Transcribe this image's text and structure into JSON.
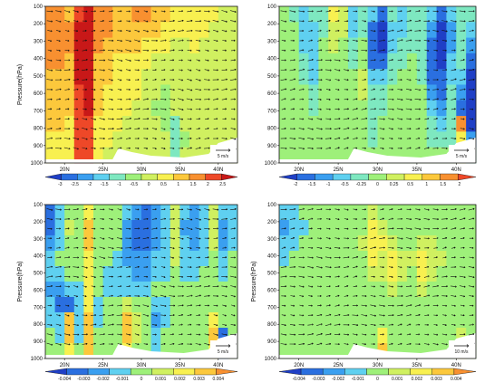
{
  "chart_data": [
    {
      "type": "heatmap",
      "panel": "top-left",
      "title": "",
      "xlabel": "",
      "ylabel": "Pressure(hPa)",
      "x_ticks": [
        "20N",
        "25N",
        "30N",
        "35N",
        "40N"
      ],
      "y_ticks": [
        "100",
        "200",
        "300",
        "400",
        "500",
        "600",
        "700",
        "800",
        "900",
        "1000"
      ],
      "xlim": [
        20,
        40
      ],
      "ylim": [
        1000,
        100
      ],
      "ref_vector": "5 m/s",
      "colorbar_labels": [
        "-3",
        "-2.5",
        "-2",
        "-1.5",
        "-1",
        "-0.5",
        "0",
        "0.5",
        "1",
        "1.5",
        "2",
        "2.5"
      ],
      "colorbar_colors": [
        "#1f3fc6",
        "#2a6fe0",
        "#3a9ff0",
        "#5fd0f0",
        "#7ee8c0",
        "#9ef07a",
        "#d0f060",
        "#f8f050",
        "#fcc83c",
        "#f89030",
        "#ee4828",
        "#c81818"
      ],
      "grid": [
        [
          0.6,
          0.6,
          0.55,
          0.9,
          1.0,
          0.7,
          0.6,
          0.55,
          0.5,
          0.6,
          0.7,
          0.55,
          0.4,
          0.35,
          0.3,
          0.35,
          0.3,
          0.2,
          0.15,
          0.1
        ],
        [
          0.65,
          0.6,
          0.6,
          1.0,
          1.1,
          0.65,
          0.6,
          0.55,
          0.5,
          0.55,
          0.55,
          0.45,
          0.3,
          0.25,
          0.25,
          0.3,
          0.2,
          0.15,
          0.1,
          0.1
        ],
        [
          0.65,
          0.6,
          0.6,
          1.05,
          1.15,
          0.6,
          0.55,
          0.5,
          0.4,
          0.4,
          0.35,
          0.25,
          0.2,
          0.15,
          0.15,
          0.2,
          0.15,
          0.1,
          0.05,
          0.05
        ],
        [
          0.6,
          0.6,
          0.55,
          1.05,
          1.15,
          0.55,
          0.45,
          0.35,
          0.3,
          0.25,
          0.2,
          0.15,
          0.1,
          0.1,
          0.1,
          0.1,
          0.05,
          0.05,
          0.0,
          0.0
        ],
        [
          0.55,
          0.55,
          0.5,
          1.0,
          1.1,
          0.5,
          0.4,
          0.3,
          0.25,
          0.2,
          0.15,
          0.1,
          0.05,
          0.05,
          0.0,
          0.0,
          0.0,
          0.0,
          0.0,
          0.0
        ],
        [
          0.5,
          0.5,
          0.45,
          0.95,
          1.05,
          0.45,
          0.35,
          0.3,
          0.25,
          0.2,
          0.1,
          0.0,
          -0.1,
          0.0,
          0.0,
          0.0,
          0.0,
          0.0,
          0.0,
          0.0
        ],
        [
          0.45,
          0.45,
          0.4,
          0.9,
          1.0,
          0.4,
          0.3,
          0.25,
          0.2,
          0.15,
          0.05,
          -0.15,
          -0.1,
          0.0,
          0.0,
          0.0,
          0.0,
          0.0,
          0.0,
          0.0
        ],
        [
          0.4,
          0.4,
          0.35,
          0.9,
          0.95,
          0.35,
          0.25,
          0.2,
          0.15,
          0.1,
          0.0,
          0.0,
          -0.2,
          -0.3,
          0.0,
          0.0,
          0.0,
          0.0,
          0.0,
          0.0
        ],
        [
          0.35,
          0.35,
          0.3,
          0.85,
          0.9,
          0.3,
          0.2,
          0.15,
          0.1,
          0.05,
          0.0,
          0.0,
          0.0,
          -0.4,
          -0.1,
          0.0,
          0.0,
          0.0,
          0.0,
          0.0
        ],
        [
          0.3,
          0.3,
          0.3,
          0.8,
          0.85,
          0.25,
          0.15,
          0.1,
          0.05,
          0.0,
          0.0,
          0.0,
          0.0,
          -0.3,
          0.0,
          0.0,
          0.0,
          0.0,
          0.0,
          0.0
        ]
      ]
    },
    {
      "type": "heatmap",
      "panel": "top-right",
      "title": "",
      "xlabel": "",
      "ylabel": "",
      "x_ticks": [
        "20N",
        "25N",
        "30N",
        "35N",
        "40N"
      ],
      "y_ticks": [
        "100",
        "200",
        "300",
        "400",
        "500",
        "600",
        "700",
        "800",
        "900",
        "1000"
      ],
      "xlim": [
        20,
        40
      ],
      "ylim": [
        1000,
        100
      ],
      "ref_vector": "5 m/s",
      "colorbar_labels": [
        "-2",
        "-1.5",
        "-1",
        "-0.5",
        "-0.25",
        "0",
        "0.25",
        "0.5",
        "1",
        "1.5",
        "2"
      ],
      "colorbar_colors": [
        "#1f3fc6",
        "#2a6fe0",
        "#3a9ff0",
        "#5fd0f0",
        "#7ee8c0",
        "#9ef07a",
        "#d0f060",
        "#f8f050",
        "#fcc83c",
        "#f89030",
        "#ee4828"
      ],
      "grid": [
        [
          -0.1,
          -0.2,
          -0.5,
          -0.3,
          -0.2,
          0.5,
          0.2,
          -0.5,
          -0.2,
          -0.5,
          -0.9,
          -0.3,
          -0.4,
          -0.2,
          -0.3,
          -0.4,
          -0.9,
          -0.5,
          -0.2,
          -0.3
        ],
        [
          -0.1,
          -0.1,
          -0.5,
          -0.4,
          -0.2,
          0.3,
          0.2,
          -0.4,
          -0.3,
          -0.8,
          -1.0,
          -0.4,
          -0.4,
          -0.2,
          -0.3,
          -0.6,
          -1.0,
          -0.6,
          -0.3,
          -0.5
        ],
        [
          0.0,
          -0.1,
          -0.4,
          -0.5,
          -0.1,
          0.2,
          0.1,
          -0.3,
          -0.1,
          -0.9,
          -1.0,
          -0.4,
          -0.3,
          -0.2,
          -0.2,
          -0.8,
          -1.0,
          -0.6,
          -0.3,
          -0.7
        ],
        [
          0.0,
          0.0,
          -0.3,
          -0.5,
          0.0,
          0.1,
          0.0,
          -0.2,
          0.1,
          -0.8,
          -0.9,
          -0.3,
          -0.2,
          -0.1,
          -0.2,
          -0.9,
          -1.0,
          -0.5,
          -0.3,
          -0.8
        ],
        [
          0.0,
          0.0,
          -0.2,
          -0.4,
          0.0,
          0.1,
          0.0,
          -0.1,
          0.2,
          -0.4,
          -0.5,
          -0.2,
          -0.1,
          -0.1,
          -0.2,
          -0.8,
          -0.9,
          -0.4,
          -0.4,
          -1.0
        ],
        [
          0.0,
          0.0,
          -0.1,
          -0.3,
          0.0,
          0.0,
          0.0,
          0.0,
          0.2,
          -0.2,
          -0.3,
          -0.1,
          0.0,
          0.0,
          -0.1,
          -0.6,
          -0.8,
          -0.3,
          -0.6,
          -1.1
        ],
        [
          0.0,
          0.0,
          0.0,
          -0.2,
          0.1,
          0.0,
          0.0,
          0.0,
          0.1,
          -0.2,
          -0.2,
          0.0,
          0.0,
          0.0,
          0.0,
          -0.4,
          -0.6,
          -0.3,
          -0.8,
          -1.2
        ],
        [
          0.0,
          0.0,
          0.0,
          -0.1,
          0.1,
          0.0,
          0.0,
          0.0,
          0.0,
          -0.3,
          -0.1,
          0.0,
          0.0,
          0.0,
          0.0,
          -0.3,
          -0.4,
          -0.3,
          0.8,
          -1.0
        ],
        [
          0.0,
          0.0,
          0.0,
          0.0,
          0.0,
          0.0,
          0.0,
          0.0,
          0.0,
          -0.2,
          0.0,
          0.0,
          0.0,
          0.0,
          0.0,
          -0.2,
          -0.2,
          -0.2,
          0.5,
          -0.6
        ],
        [
          0.0,
          0.0,
          0.0,
          0.0,
          0.0,
          0.0,
          0.0,
          0.0,
          0.0,
          0.0,
          0.0,
          0.0,
          0.0,
          0.0,
          0.0,
          0.0,
          -0.1,
          -0.1,
          0.2,
          -0.3
        ]
      ]
    },
    {
      "type": "heatmap",
      "panel": "bottom-left",
      "title": "",
      "xlabel": "",
      "ylabel": "Pressure(hPa)",
      "x_ticks": [
        "20N",
        "25N",
        "30N",
        "35N",
        "40N"
      ],
      "y_ticks": [
        "100",
        "200",
        "300",
        "400",
        "500",
        "600",
        "700",
        "800",
        "900",
        "1000"
      ],
      "xlim": [
        20,
        40
      ],
      "ylim": [
        1000,
        100
      ],
      "ref_vector": "5 m/s",
      "colorbar_labels": [
        "-0.004",
        "-0.003",
        "-0.002",
        "-0.001",
        "0",
        "0.001",
        "0.002",
        "0.003",
        "0.004"
      ],
      "colorbar_colors": [
        "#1f3fc6",
        "#2a6fe0",
        "#3a9ff0",
        "#5fd0f0",
        "#9ef07a",
        "#d0f060",
        "#f8f050",
        "#fcc83c",
        "#f89030"
      ],
      "grid": [
        [
          -0.7,
          -0.3,
          0.1,
          0.0,
          0.6,
          0.1,
          0.0,
          0.0,
          -0.4,
          -0.6,
          -0.7,
          -0.5,
          -0.3,
          0.2,
          -0.4,
          -0.5,
          -0.3,
          0.2,
          -0.4,
          -0.2
        ],
        [
          -0.9,
          -0.4,
          0.2,
          0.0,
          0.7,
          0.0,
          0.0,
          0.0,
          -0.6,
          -0.9,
          -0.9,
          -0.6,
          -0.4,
          0.3,
          -0.5,
          -0.6,
          -0.4,
          0.3,
          -0.6,
          -0.3
        ],
        [
          -0.5,
          -0.2,
          0.1,
          0.0,
          0.7,
          0.0,
          -0.1,
          -0.1,
          -0.6,
          -0.8,
          -0.8,
          -0.5,
          -0.3,
          0.2,
          -0.4,
          -0.5,
          -0.2,
          0.2,
          -0.5,
          -0.2
        ],
        [
          -0.3,
          -0.1,
          0.1,
          0.0,
          0.6,
          0.0,
          -0.1,
          -0.2,
          -0.5,
          -0.6,
          -0.6,
          -0.4,
          -0.2,
          0.2,
          -0.3,
          -0.3,
          -0.2,
          0.1,
          -0.3,
          -0.1
        ],
        [
          -0.2,
          -0.2,
          0.1,
          0.0,
          0.6,
          0.0,
          -0.2,
          -0.3,
          -0.4,
          -0.5,
          -0.5,
          -0.3,
          -0.2,
          0.1,
          -0.2,
          -0.2,
          -0.1,
          0.1,
          -0.2,
          -0.1
        ],
        [
          -0.5,
          -0.6,
          -0.2,
          -0.3,
          0.5,
          -0.1,
          -0.3,
          -0.3,
          -0.2,
          -0.2,
          -0.2,
          -0.1,
          -0.1,
          0.0,
          -0.1,
          -0.1,
          0.0,
          0.0,
          -0.1,
          0.0
        ],
        [
          -0.3,
          -0.8,
          -0.7,
          -0.4,
          0.5,
          -0.2,
          -0.1,
          0.0,
          0.3,
          0.1,
          0.0,
          -0.3,
          -0.2,
          0.0,
          -0.1,
          0.0,
          0.0,
          0.1,
          0.0,
          0.0
        ],
        [
          -0.2,
          -0.4,
          0.7,
          -0.3,
          0.8,
          -0.2,
          0.0,
          0.0,
          0.7,
          0.2,
          0.0,
          -0.5,
          -0.2,
          0.0,
          0.0,
          0.0,
          0.0,
          0.5,
          0.0,
          0.0
        ],
        [
          -0.1,
          -0.2,
          0.8,
          -0.2,
          0.9,
          -0.1,
          0.0,
          0.0,
          0.8,
          0.2,
          0.0,
          -0.4,
          -0.1,
          0.0,
          0.0,
          0.0,
          0.0,
          0.7,
          -0.8,
          0.0
        ],
        [
          0.0,
          0.0,
          0.6,
          0.0,
          0.7,
          0.0,
          0.0,
          0.0,
          0.5,
          0.1,
          0.0,
          -0.2,
          0.0,
          0.0,
          0.0,
          0.0,
          0.0,
          0.5,
          -0.5,
          0.0
        ]
      ]
    },
    {
      "type": "heatmap",
      "panel": "bottom-right",
      "title": "",
      "xlabel": "",
      "ylabel": "Pressure(hPa)",
      "x_ticks": [
        "20N",
        "25N",
        "30N",
        "35N",
        "40N"
      ],
      "y_ticks": [
        "100",
        "200",
        "300",
        "400",
        "500",
        "600",
        "700",
        "800",
        "900",
        "1000"
      ],
      "xlim": [
        20,
        40
      ],
      "ylim": [
        1000,
        100
      ],
      "ref_vector": "10 m/s",
      "colorbar_labels": [
        "-0.004",
        "-0.003",
        "-0.002",
        "-0.001",
        "0",
        "0.001",
        "0.002",
        "0.003",
        "0.004"
      ],
      "colorbar_colors": [
        "#1f3fc6",
        "#2a6fe0",
        "#3a9ff0",
        "#5fd0f0",
        "#9ef07a",
        "#d0f060",
        "#f8f050",
        "#fcc83c",
        "#f89030"
      ],
      "grid": [
        [
          -0.3,
          -0.2,
          -0.1,
          0.0,
          0.0,
          0.0,
          0.0,
          0.0,
          0.0,
          0.3,
          0.1,
          0.0,
          0.0,
          0.0,
          0.0,
          0.0,
          0.0,
          0.0,
          0.0,
          0.0
        ],
        [
          -0.6,
          -0.4,
          -0.2,
          0.0,
          0.0,
          0.0,
          0.0,
          0.0,
          0.1,
          0.5,
          0.3,
          0.1,
          0.0,
          0.0,
          0.1,
          0.1,
          0.0,
          0.0,
          0.0,
          0.0
        ],
        [
          -0.4,
          -0.3,
          -0.1,
          0.0,
          0.0,
          0.0,
          0.0,
          0.0,
          0.2,
          0.5,
          0.4,
          0.3,
          0.1,
          0.1,
          0.3,
          0.2,
          0.1,
          0.0,
          0.0,
          0.0
        ],
        [
          -0.2,
          -0.1,
          0.0,
          0.0,
          0.0,
          0.0,
          0.0,
          0.0,
          0.1,
          0.4,
          0.3,
          0.5,
          0.3,
          0.2,
          0.4,
          0.3,
          0.2,
          0.0,
          0.0,
          0.0
        ],
        [
          0.0,
          0.0,
          0.0,
          0.0,
          0.0,
          0.0,
          0.0,
          0.0,
          0.0,
          0.2,
          0.2,
          0.4,
          0.2,
          0.1,
          0.4,
          0.2,
          0.1,
          0.0,
          0.0,
          0.0
        ],
        [
          0.0,
          0.0,
          0.0,
          0.0,
          0.0,
          0.0,
          0.0,
          0.0,
          0.0,
          0.1,
          0.1,
          0.2,
          0.1,
          0.0,
          0.2,
          0.1,
          0.0,
          0.0,
          0.0,
          0.0
        ],
        [
          0.0,
          0.0,
          0.0,
          0.0,
          0.0,
          0.0,
          0.0,
          0.0,
          0.0,
          0.0,
          0.0,
          0.1,
          0.0,
          0.0,
          0.1,
          0.0,
          0.0,
          0.0,
          0.0,
          0.0
        ],
        [
          0.0,
          0.0,
          0.0,
          0.0,
          0.0,
          0.0,
          0.0,
          0.0,
          0.0,
          0.0,
          0.0,
          0.0,
          0.0,
          0.0,
          0.0,
          0.0,
          0.0,
          0.0,
          0.0,
          0.0
        ],
        [
          0.0,
          0.0,
          0.0,
          0.0,
          0.0,
          0.0,
          0.0,
          0.0,
          0.0,
          0.0,
          0.6,
          0.0,
          0.0,
          0.0,
          0.0,
          0.0,
          0.0,
          0.0,
          0.2,
          0.0
        ],
        [
          0.0,
          0.0,
          0.0,
          0.0,
          0.0,
          0.0,
          0.0,
          0.0,
          0.0,
          0.0,
          0.8,
          0.0,
          0.0,
          0.0,
          0.0,
          0.0,
          0.0,
          0.0,
          0.4,
          0.0
        ]
      ]
    }
  ]
}
